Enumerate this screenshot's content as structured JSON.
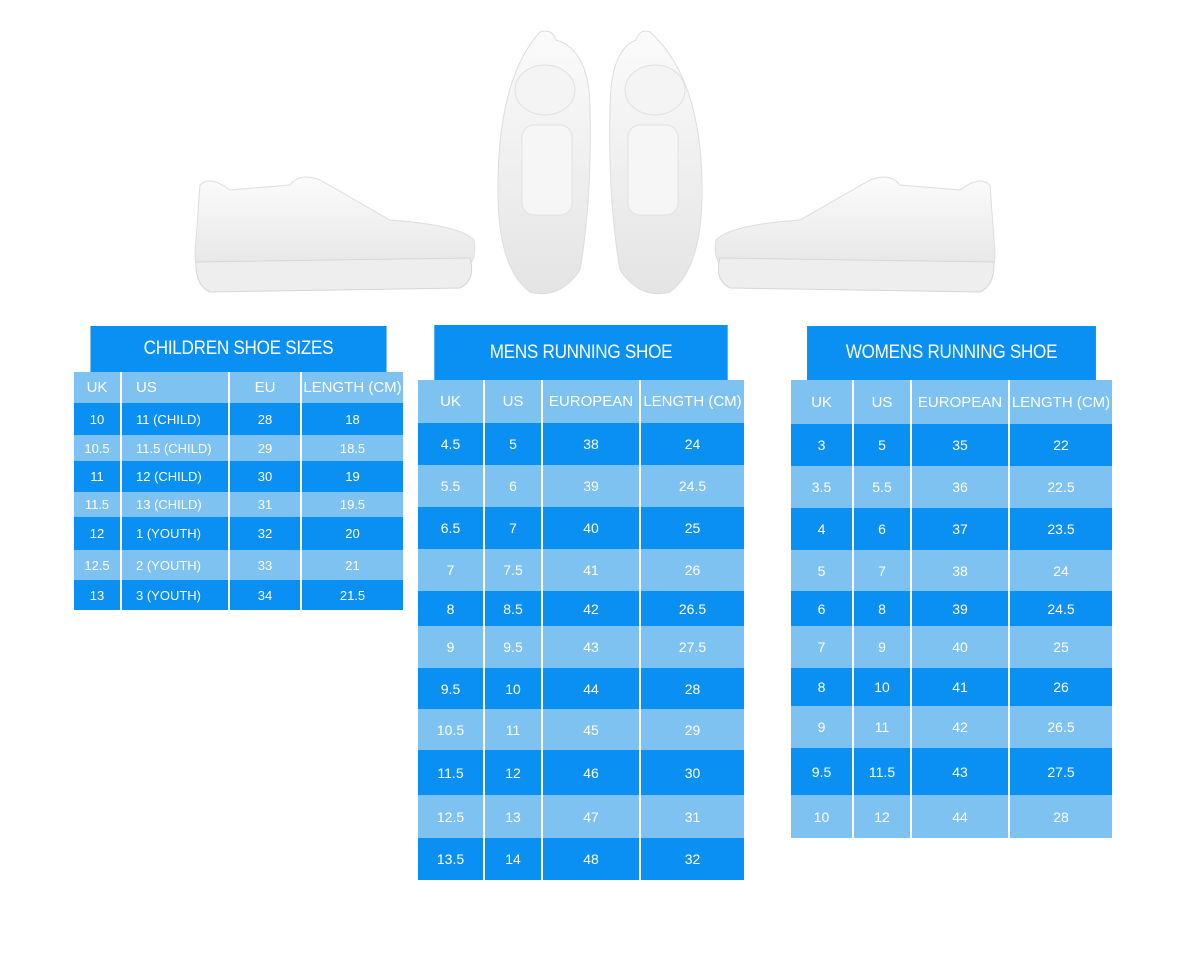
{
  "colors": {
    "dark": "#0a90f2",
    "light": "#7ec2f1",
    "text": "#ffffff"
  },
  "shoes": [
    "side-view-left",
    "top-view-left",
    "top-view-right",
    "side-view-right"
  ],
  "children": {
    "title": "CHILDREN SHOE SIZES",
    "headers": [
      "UK",
      "US",
      "EU",
      "LENGTH (CM)"
    ],
    "rows": [
      [
        "10",
        "11 (CHILD)",
        "28",
        "18"
      ],
      [
        "10.5",
        "11.5 (CHILD)",
        "29",
        "18.5"
      ],
      [
        "11",
        "12 (CHILD)",
        "30",
        "19"
      ],
      [
        "11.5",
        "13 (CHILD)",
        "31",
        "19.5"
      ],
      [
        "12",
        "1 (YOUTH)",
        "32",
        "20"
      ],
      [
        "12.5",
        "2 (YOUTH)",
        "33",
        "21"
      ],
      [
        "13",
        "3 (YOUTH)",
        "34",
        "21.5"
      ]
    ]
  },
  "mens": {
    "title": "MENS RUNNING SHOE",
    "headers": [
      "UK",
      "US",
      "EUROPEAN",
      "LENGTH (CM)"
    ],
    "rows": [
      [
        "4.5",
        "5",
        "38",
        "24"
      ],
      [
        "5.5",
        "6",
        "39",
        "24.5"
      ],
      [
        "6.5",
        "7",
        "40",
        "25"
      ],
      [
        "7",
        "7.5",
        "41",
        "26"
      ],
      [
        "8",
        "8.5",
        "42",
        "26.5"
      ],
      [
        "9",
        "9.5",
        "43",
        "27.5"
      ],
      [
        "9.5",
        "10",
        "44",
        "28"
      ],
      [
        "10.5",
        "11",
        "45",
        "29"
      ],
      [
        "11.5",
        "12",
        "46",
        "30"
      ],
      [
        "12.5",
        "13",
        "47",
        "31"
      ],
      [
        "13.5",
        "14",
        "48",
        "32"
      ]
    ]
  },
  "womens": {
    "title": "WOMENS RUNNING SHOE",
    "headers": [
      "UK",
      "US",
      "EUROPEAN",
      "LENGTH (CM)"
    ],
    "rows": [
      [
        "3",
        "5",
        "35",
        "22"
      ],
      [
        "3.5",
        "5.5",
        "36",
        "22.5"
      ],
      [
        "4",
        "6",
        "37",
        "23.5"
      ],
      [
        "5",
        "7",
        "38",
        "24"
      ],
      [
        "6",
        "8",
        "39",
        "24.5"
      ],
      [
        "7",
        "9",
        "40",
        "25"
      ],
      [
        "8",
        "10",
        "41",
        "26"
      ],
      [
        "9",
        "11",
        "42",
        "26.5"
      ],
      [
        "9.5",
        "11.5",
        "43",
        "27.5"
      ],
      [
        "10",
        "12",
        "44",
        "28"
      ]
    ]
  }
}
